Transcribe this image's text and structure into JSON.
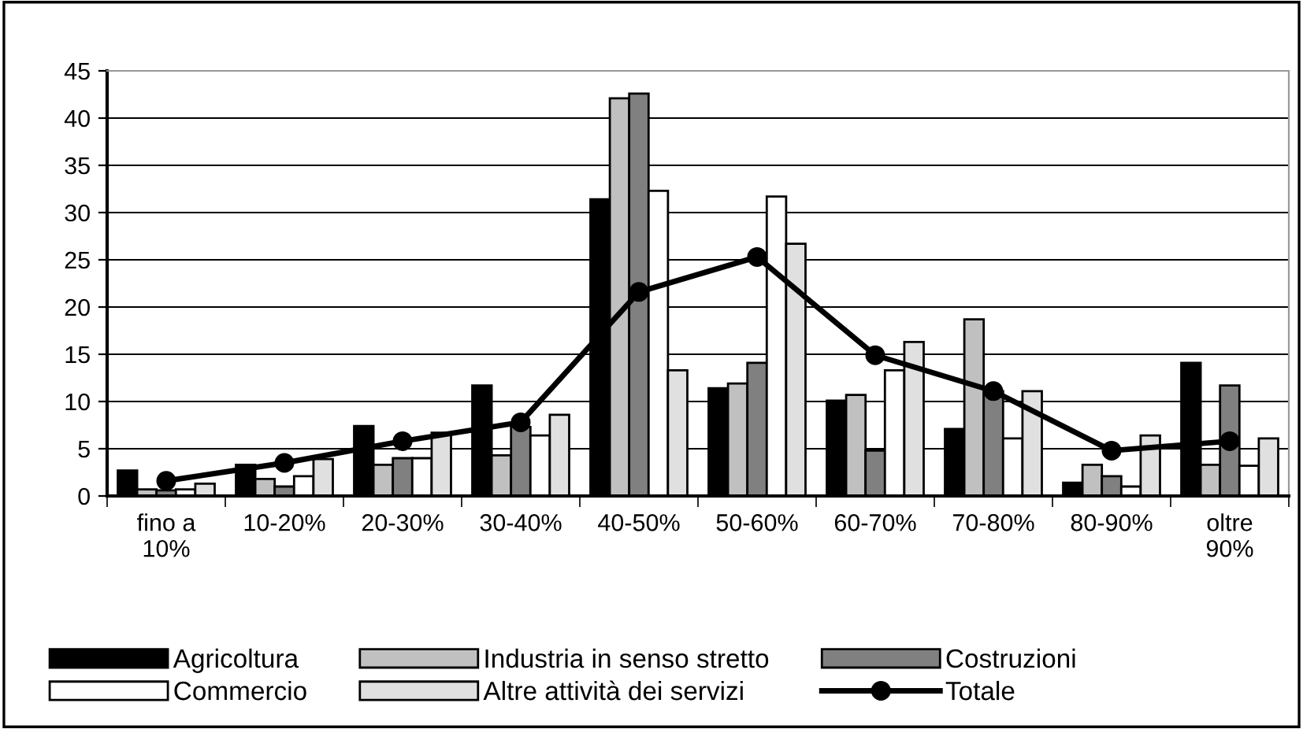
{
  "chart_data": {
    "type": "bar",
    "categories": [
      "fino a\n10%",
      "10-20%",
      "20-30%",
      "30-40%",
      "40-50%",
      "50-60%",
      "60-70%",
      "70-80%",
      "80-90%",
      "oltre\n90%"
    ],
    "series": [
      {
        "name": "Agricoltura",
        "color": "#000000",
        "values": [
          2.7,
          3.3,
          7.4,
          11.7,
          31.4,
          11.4,
          10.1,
          7.1,
          1.4,
          14.1
        ]
      },
      {
        "name": "Industria in senso stretto",
        "color": "#c0c0c0",
        "values": [
          0.7,
          1.8,
          3.3,
          4.3,
          42.1,
          11.9,
          10.7,
          18.7,
          3.3,
          3.3
        ]
      },
      {
        "name": "Costruzioni",
        "color": "#808080",
        "values": [
          0.6,
          1.0,
          4.0,
          7.3,
          42.6,
          14.1,
          4.8,
          11.1,
          2.1,
          11.7
        ]
      },
      {
        "name": "Commercio",
        "color": "#ffffff",
        "values": [
          0.7,
          2.1,
          4.0,
          6.4,
          32.3,
          31.7,
          13.3,
          6.1,
          1.0,
          3.2
        ]
      },
      {
        "name": "Altre attività dei servizi",
        "color": "#e0e0e0",
        "values": [
          1.3,
          3.9,
          6.7,
          8.6,
          13.3,
          26.7,
          16.3,
          11.1,
          6.4,
          6.1
        ]
      },
      {
        "name": "Totale",
        "type": "line",
        "color": "#000000",
        "marker": "circle",
        "line_style": "solid",
        "values": [
          1.6,
          3.5,
          5.8,
          7.8,
          21.6,
          25.3,
          14.9,
          11.1,
          4.8,
          5.8
        ]
      }
    ],
    "ylim": [
      0,
      45
    ],
    "yticks": [
      0,
      5,
      10,
      15,
      20,
      25,
      30,
      35,
      40,
      45
    ],
    "grid": "y",
    "legend": "bottom"
  }
}
